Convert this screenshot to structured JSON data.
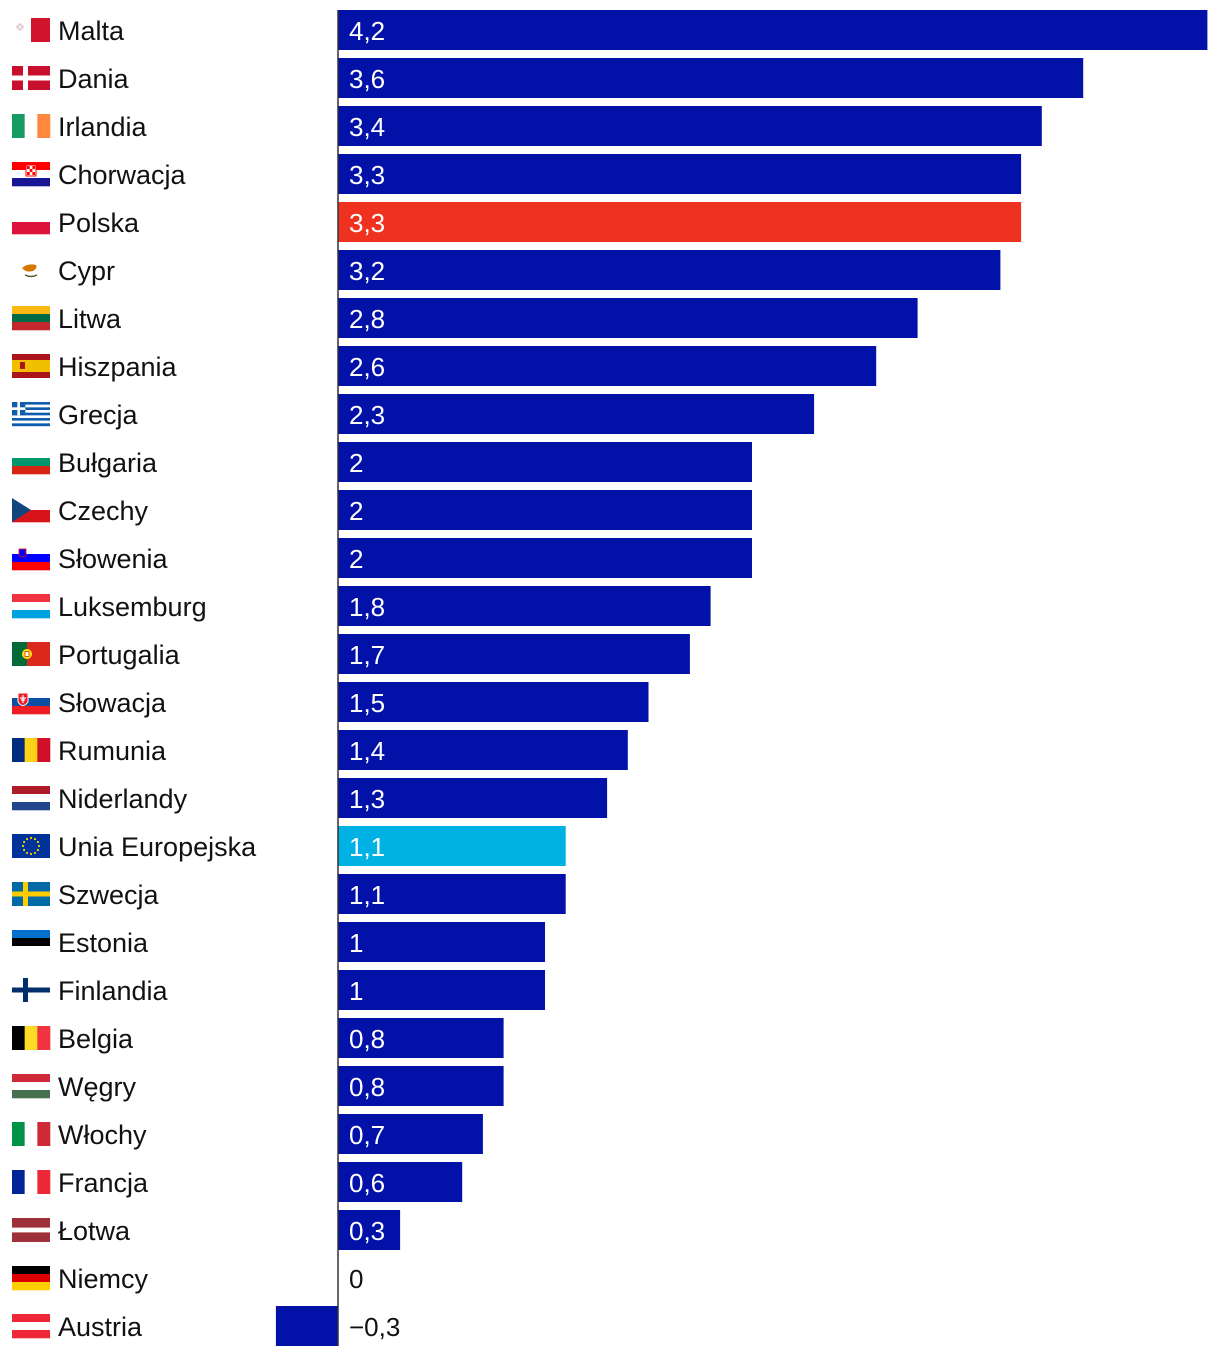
{
  "colors": {
    "bar": "#0212a8",
    "highlight_pl": "#ef3220",
    "highlight_eu": "#00b1e4",
    "value_inside": "#ffffff",
    "value_outside": "#111111",
    "axis": "#333333"
  },
  "chart_data": {
    "type": "bar",
    "orientation": "horizontal",
    "title": "",
    "xlabel": "",
    "ylabel": "",
    "xlim": [
      -0.3,
      4.2
    ],
    "grid": false,
    "categories": [
      "Malta",
      "Dania",
      "Irlandia",
      "Chorwacja",
      "Polska",
      "Cypr",
      "Litwa",
      "Hiszpania",
      "Grecja",
      "Bułgaria",
      "Czechy",
      "Słowenia",
      "Luksemburg",
      "Portugalia",
      "Słowacja",
      "Rumunia",
      "Niderlandy",
      "Unia Europejska",
      "Szwecja",
      "Estonia",
      "Finlandia",
      "Belgia",
      "Węgry",
      "Włochy",
      "Francja",
      "Łotwa",
      "Niemcy",
      "Austria"
    ],
    "values": [
      4.2,
      3.6,
      3.4,
      3.3,
      3.3,
      3.2,
      2.8,
      2.6,
      2.3,
      2,
      2,
      2,
      1.8,
      1.7,
      1.5,
      1.4,
      1.3,
      1.1,
      1.1,
      1,
      1,
      0.8,
      0.8,
      0.7,
      0.6,
      0.3,
      0,
      -0.3
    ],
    "value_labels": [
      "4,2",
      "3,6",
      "3,4",
      "3,3",
      "3,3",
      "3,2",
      "2,8",
      "2,6",
      "2,3",
      "2",
      "2",
      "2",
      "1,8",
      "1,7",
      "1,5",
      "1,4",
      "1,3",
      "1,1",
      "1,1",
      "1",
      "1",
      "0,8",
      "0,8",
      "0,7",
      "0,6",
      "0,3",
      "0",
      "−0,3"
    ],
    "highlights": {
      "Polska": "highlight_pl",
      "Unia Europejska": "highlight_eu"
    },
    "flags": [
      "flag-malta-icon",
      "flag-denmark-icon",
      "flag-ireland-icon",
      "flag-croatia-icon",
      "flag-poland-icon",
      "flag-cyprus-icon",
      "flag-lithuania-icon",
      "flag-spain-icon",
      "flag-greece-icon",
      "flag-bulgaria-icon",
      "flag-czechia-icon",
      "flag-slovenia-icon",
      "flag-luxembourg-icon",
      "flag-portugal-icon",
      "flag-slovakia-icon",
      "flag-romania-icon",
      "flag-netherlands-icon",
      "flag-eu-icon",
      "flag-sweden-icon",
      "flag-estonia-icon",
      "flag-finland-icon",
      "flag-belgium-icon",
      "flag-hungary-icon",
      "flag-italy-icon",
      "flag-france-icon",
      "flag-latvia-icon",
      "flag-germany-icon",
      "flag-austria-icon"
    ]
  }
}
